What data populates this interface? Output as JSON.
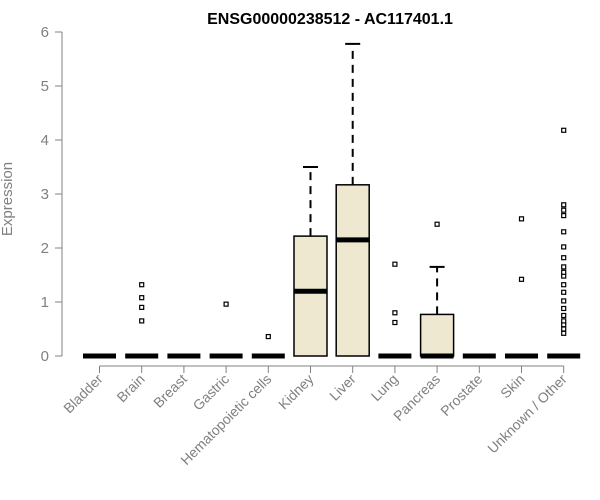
{
  "chart_data": {
    "type": "boxplot",
    "title": "ENSG00000238512 - AC117401.1",
    "xlabel": "",
    "ylabel": "Expression",
    "ylim": [
      0,
      6
    ],
    "yticks": [
      0,
      1,
      2,
      3,
      4,
      5,
      6
    ],
    "grid": false,
    "legend": "none",
    "colors": {
      "box_fill": "#EEE8D0",
      "box_stroke": "#000000",
      "axis": "#808080",
      "title": "#000000"
    },
    "categories": [
      {
        "label": "Bladder",
        "min": 0,
        "q1": 0,
        "median": 0,
        "q3": 0,
        "max": 0,
        "outliers": []
      },
      {
        "label": "Brain",
        "min": 0,
        "q1": 0,
        "median": 0,
        "q3": 0,
        "max": 0,
        "outliers": [
          0.65,
          0.9,
          1.08,
          1.32
        ]
      },
      {
        "label": "Breast",
        "min": 0,
        "q1": 0,
        "median": 0,
        "q3": 0,
        "max": 0,
        "outliers": []
      },
      {
        "label": "Gastric",
        "min": 0,
        "q1": 0,
        "median": 0,
        "q3": 0,
        "max": 0,
        "outliers": [
          0.96
        ]
      },
      {
        "label": "Hematopoietic cells",
        "min": 0,
        "q1": 0,
        "median": 0,
        "q3": 0,
        "max": 0,
        "outliers": [
          0.36
        ]
      },
      {
        "label": "Kidney",
        "min": 0,
        "q1": 0,
        "median": 1.2,
        "q3": 2.22,
        "max": 3.5,
        "outliers": []
      },
      {
        "label": "Liver",
        "min": 0,
        "q1": 0,
        "median": 2.15,
        "q3": 3.17,
        "max": 5.78,
        "outliers": []
      },
      {
        "label": "Lung",
        "min": 0,
        "q1": 0,
        "median": 0,
        "q3": 0,
        "max": 0,
        "outliers": [
          0.62,
          0.8,
          1.7
        ]
      },
      {
        "label": "Pancreas",
        "min": 0,
        "q1": 0,
        "median": 0,
        "q3": 0.77,
        "max": 1.65,
        "outliers": [
          2.44
        ]
      },
      {
        "label": "Prostate",
        "min": 0,
        "q1": 0,
        "median": 0,
        "q3": 0,
        "max": 0,
        "outliers": []
      },
      {
        "label": "Skin",
        "min": 0,
        "q1": 0,
        "median": 0,
        "q3": 0,
        "max": 0,
        "outliers": [
          1.42,
          2.54
        ]
      },
      {
        "label": "Unknown / Other",
        "min": 0,
        "q1": 0,
        "median": 0,
        "q3": 0,
        "max": 0,
        "outliers": [
          0.42,
          0.5,
          0.58,
          0.65,
          0.75,
          0.88,
          1.02,
          1.18,
          1.32,
          1.48,
          1.55,
          1.65,
          1.82,
          2.02,
          2.3,
          2.6,
          2.7,
          2.8,
          4.18
        ]
      }
    ]
  }
}
